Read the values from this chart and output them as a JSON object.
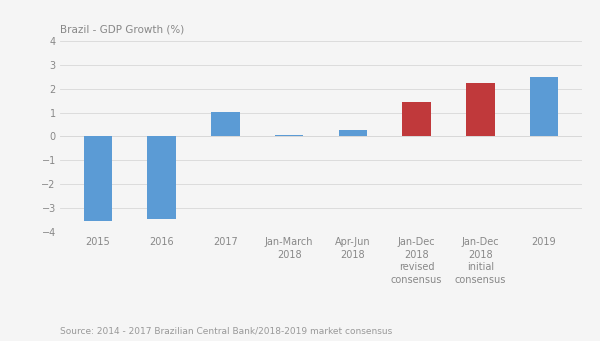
{
  "title": "Brazil - GDP Growth (%)",
  "categories": [
    "2015",
    "2016",
    "2017",
    "Jan-March\n2018",
    "Apr-Jun\n2018",
    "Jan-Dec\n2018\nrevised\nconsensus",
    "Jan-Dec\n2018\ninitial\nconsensus",
    "2019"
  ],
  "values": [
    -3.55,
    -3.46,
    1.04,
    0.07,
    0.27,
    1.44,
    2.25,
    2.5
  ],
  "colors": [
    "#5b9bd5",
    "#5b9bd5",
    "#5b9bd5",
    "#5b9bd5",
    "#5b9bd5",
    "#c0393b",
    "#c0393b",
    "#5b9bd5"
  ],
  "ylim": [
    -4,
    4
  ],
  "yticks": [
    -4,
    -3,
    -2,
    -1,
    0,
    1,
    2,
    3,
    4
  ],
  "source": "Source: 2014 - 2017 Brazilian Central Bank/2018-2019 market consensus",
  "title_fontsize": 7.5,
  "tick_fontsize": 7,
  "source_fontsize": 6.5,
  "bg_color": "#f5f5f5",
  "grid_color": "#d8d8d8",
  "bar_width": 0.45
}
